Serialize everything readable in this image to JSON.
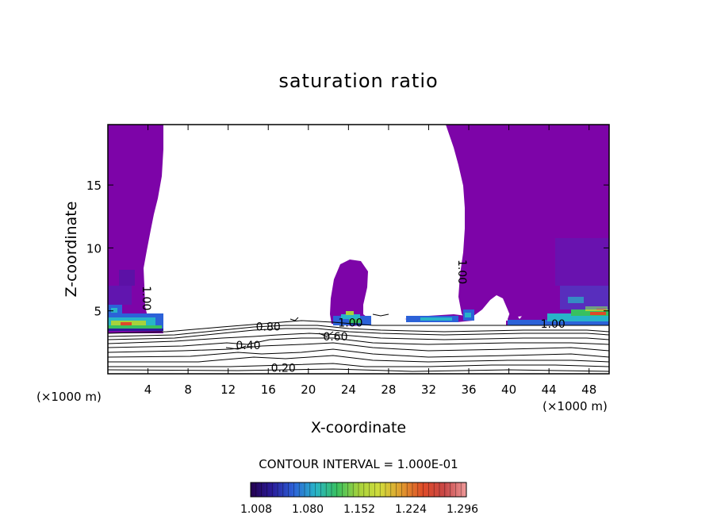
{
  "chart_data": {
    "type": "contour",
    "title": "saturation ratio",
    "xlabel": "X-coordinate",
    "ylabel": "Z-coordinate",
    "x_unit": "(×1000 m)",
    "y_unit": "(×1000 m)",
    "xlim": [
      0,
      50
    ],
    "ylim": [
      0,
      19.8
    ],
    "x_ticks": [
      4,
      8,
      12,
      16,
      20,
      24,
      28,
      32,
      36,
      40,
      44,
      48
    ],
    "y_ticks": [
      5,
      10,
      15
    ],
    "contour_interval_text": "CONTOUR INTERVAL = 1.000E-01",
    "contour_levels": [
      0.1,
      0.2,
      0.3,
      0.4,
      0.5,
      0.6,
      0.7,
      0.8,
      0.9,
      1.0
    ],
    "contour_labels": [
      {
        "text": "0.20",
        "x": 17.5,
        "y": 0.4
      },
      {
        "text": "0.40",
        "x": 14.0,
        "y": 2.2
      },
      {
        "text": "0.60",
        "x": 22.7,
        "y": 2.9
      },
      {
        "text": "0.80",
        "x": 16.0,
        "y": 3.7
      },
      {
        "text": "1.00",
        "x": 3.8,
        "y": 6.0,
        "rotate": 90
      },
      {
        "text": "1.00",
        "x": 24.2,
        "y": 4.0
      },
      {
        "text": "1.00",
        "x": 35.3,
        "y": 8.1,
        "rotate": 90
      },
      {
        "text": "1.00",
        "x": 44.4,
        "y": 3.9
      }
    ],
    "colorbar": {
      "ticks": [
        "1.008",
        "1.080",
        "1.152",
        "1.224",
        "1.296"
      ],
      "colors": [
        "#24004e",
        "#2a1c9a",
        "#2c62d8",
        "#28b4c8",
        "#38c060",
        "#a6d23c",
        "#d2dc3c",
        "#e09a2e",
        "#de4a28",
        "#c84848",
        "#ee9a9a"
      ]
    },
    "fill_color": "#7d04a8"
  }
}
